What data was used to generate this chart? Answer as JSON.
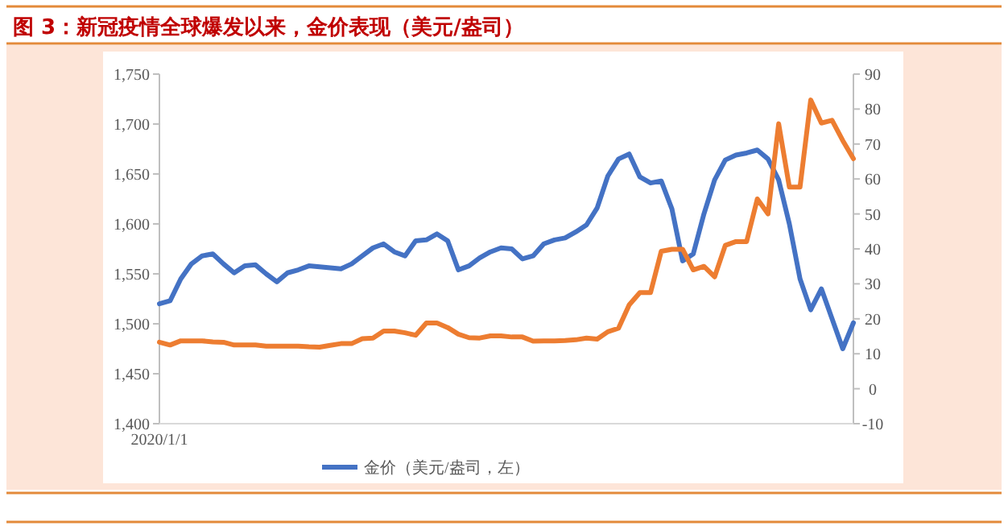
{
  "chart_data": {
    "type": "line",
    "title": "图 3：新冠疫情全球爆发以来，金价表现（美元/盎司）",
    "categories": [
      "2020/1/1",
      null,
      null,
      null,
      null,
      null,
      null,
      null,
      null,
      null,
      null,
      null,
      null,
      null,
      null,
      null,
      null,
      null,
      null,
      null,
      null,
      null,
      null,
      null,
      null,
      null,
      null,
      null,
      null,
      null,
      null,
      null,
      null,
      null,
      null,
      null,
      null,
      null,
      null,
      null,
      null,
      null,
      null,
      null,
      null,
      null,
      null,
      null,
      null,
      null,
      null,
      null,
      null,
      null,
      null,
      null,
      null,
      null,
      null,
      null,
      null,
      null,
      null,
      null,
      null,
      null
    ],
    "series": [
      {
        "name": "金价（美元/盎司，左）",
        "color": "#4472c4",
        "values": [
          1520,
          1523,
          1545,
          1560,
          1568,
          1570,
          1560,
          1551,
          1558,
          1559,
          1550,
          1542,
          1551,
          1554,
          1558,
          1557,
          1556,
          1555,
          1560,
          1568,
          1576,
          1580,
          1572,
          1568,
          1583,
          1584,
          1590,
          1583,
          1554,
          1558,
          1566,
          1572,
          1576,
          1575,
          1565,
          1568,
          1580,
          1584,
          1586,
          1592,
          1599,
          1616,
          1648,
          1665,
          1670,
          1647,
          1641,
          1643,
          1615,
          1563,
          1570,
          1610,
          1644,
          1664,
          1669,
          1671,
          1674,
          1665,
          1644,
          1600,
          1545,
          1514,
          1535,
          1505,
          1475,
          1501
        ]
      },
      {
        "color": "#ed7d31",
        "axis": "y2",
        "values": [
          13.3,
          12.5,
          13.7,
          13.7,
          13.7,
          13.4,
          13.3,
          12.5,
          12.5,
          12.5,
          12.2,
          12.2,
          12.2,
          12.2,
          12.0,
          11.9,
          12.4,
          12.9,
          12.9,
          14.3,
          14.5,
          16.5,
          16.5,
          16.0,
          15.3,
          18.8,
          18.8,
          17.5,
          15.6,
          14.6,
          14.5,
          15.1,
          15.1,
          14.8,
          14.8,
          13.6,
          13.7,
          13.7,
          13.8,
          14.0,
          14.5,
          14.2,
          16.3,
          17.3,
          24,
          27.5,
          27.5,
          39.3,
          39.9,
          39.9,
          34,
          35,
          32,
          41,
          42.1,
          42.1,
          54.3,
          50,
          75.8,
          57.7,
          57.7,
          82.6,
          76,
          76.8,
          71,
          65.8
        ]
      }
    ],
    "ylim": [
      1400,
      1750
    ],
    "yticks": [
      {
        "value": 1400,
        "label": "1,400"
      },
      {
        "value": 1450,
        "label": "1,450"
      },
      {
        "value": 1500,
        "label": "1,500"
      },
      {
        "value": 1550,
        "label": "1,550"
      },
      {
        "value": 1600,
        "label": "1,600"
      },
      {
        "value": 1650,
        "label": "1,650"
      },
      {
        "value": 1700,
        "label": "1,700"
      },
      {
        "value": 1750,
        "label": "1,750"
      }
    ],
    "y2lim": [
      -10,
      90
    ],
    "y2ticks": [
      -10,
      0,
      10,
      20,
      30,
      40,
      50,
      60,
      70,
      80,
      90
    ],
    "legend": "bottom",
    "line_style": "solid"
  }
}
